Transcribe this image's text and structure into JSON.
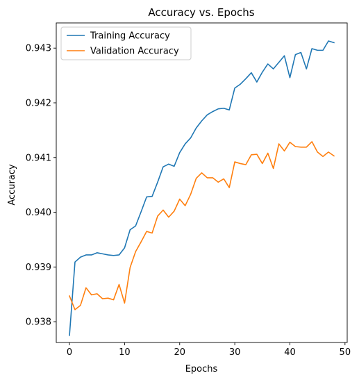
{
  "chart_data": {
    "type": "line",
    "title": "Accuracy vs. Epochs",
    "xlabel": "Epochs",
    "ylabel": "Accuracy",
    "xlim": [
      -2.4,
      50.4
    ],
    "ylim": [
      0.93762,
      0.94346
    ],
    "xticks": [
      0,
      10,
      20,
      30,
      40,
      50
    ],
    "yticks": [
      0.938,
      0.939,
      0.94,
      0.941,
      0.942,
      0.943
    ],
    "ytick_labels": [
      "0.938",
      "0.939",
      "0.940",
      "0.941",
      "0.942",
      "0.943"
    ],
    "grid": false,
    "legend_position": "upper left",
    "x": [
      0,
      1,
      2,
      3,
      4,
      5,
      6,
      7,
      8,
      9,
      10,
      11,
      12,
      13,
      14,
      15,
      16,
      17,
      18,
      19,
      20,
      21,
      22,
      23,
      24,
      25,
      26,
      27,
      28,
      29,
      30,
      31,
      32,
      33,
      34,
      35,
      36,
      37,
      38,
      39,
      40,
      41,
      42,
      43,
      44,
      45,
      46,
      47,
      48
    ],
    "series": [
      {
        "name": "Training Accuracy",
        "color": "#1f77b4",
        "values": [
          0.93775,
          0.93909,
          0.93918,
          0.93922,
          0.93922,
          0.93926,
          0.93924,
          0.93922,
          0.93921,
          0.93922,
          0.93935,
          0.93968,
          0.93975,
          0.94001,
          0.94028,
          0.94029,
          0.94055,
          0.94083,
          0.94088,
          0.94084,
          0.94109,
          0.94125,
          0.94136,
          0.94154,
          0.94167,
          0.94178,
          0.94184,
          0.94189,
          0.9419,
          0.94187,
          0.94227,
          0.94234,
          0.94244,
          0.94255,
          0.94238,
          0.94256,
          0.94271,
          0.94262,
          0.94274,
          0.94286,
          0.94246,
          0.94288,
          0.94292,
          0.94262,
          0.94299,
          0.94296,
          0.94296,
          0.94313,
          0.9431
        ]
      },
      {
        "name": "Validation Accuracy",
        "color": "#ff7f0e",
        "values": [
          0.93847,
          0.93822,
          0.9383,
          0.93862,
          0.93849,
          0.93851,
          0.93842,
          0.93843,
          0.9384,
          0.93868,
          0.93834,
          0.93899,
          0.93928,
          0.93946,
          0.93965,
          0.93962,
          0.93993,
          0.94004,
          0.93991,
          0.94002,
          0.94024,
          0.94012,
          0.94033,
          0.94062,
          0.94072,
          0.94063,
          0.94063,
          0.94055,
          0.94061,
          0.94045,
          0.94092,
          0.94089,
          0.94087,
          0.94105,
          0.94106,
          0.94089,
          0.94108,
          0.9408,
          0.94125,
          0.94112,
          0.94128,
          0.9412,
          0.94119,
          0.94119,
          0.94129,
          0.9411,
          0.94102,
          0.9411,
          0.94103
        ]
      }
    ]
  }
}
